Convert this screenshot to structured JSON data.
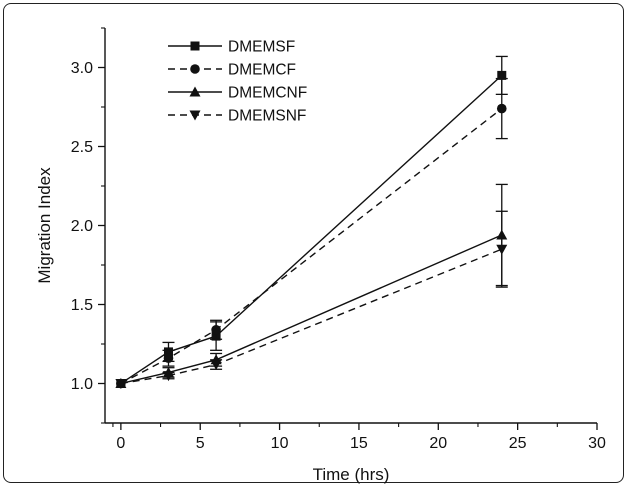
{
  "chart_data": {
    "type": "line",
    "title": "",
    "xlabel": "Time (hrs)",
    "ylabel": "Migration Index",
    "xlim": [
      -1,
      30
    ],
    "ylim": [
      0.75,
      3.25
    ],
    "x_ticks": [
      0,
      5,
      10,
      15,
      20,
      25,
      30
    ],
    "y_ticks": [
      1.0,
      1.5,
      2.0,
      2.5,
      3.0
    ],
    "x_tick_labels": [
      "0",
      "5",
      "10",
      "15",
      "20",
      "25",
      "30"
    ],
    "y_tick_labels": [
      "1.0",
      "1.5",
      "2.0",
      "2.5",
      "3.0"
    ],
    "grid": false,
    "legend_position": "top-left",
    "x": [
      0,
      3,
      6,
      24
    ],
    "series": [
      {
        "name": "DMEMSF",
        "marker": "square",
        "dash": "solid",
        "values": [
          1.0,
          1.2,
          1.3,
          2.95
        ],
        "errors": [
          0.0,
          0.06,
          0.09,
          0.12
        ]
      },
      {
        "name": "DMEMCF",
        "marker": "circle",
        "dash": "dashed",
        "values": [
          1.0,
          1.16,
          1.34,
          2.74
        ],
        "errors": [
          0.0,
          0.05,
          0.06,
          0.19
        ]
      },
      {
        "name": "DMEMCNF",
        "marker": "triangle-up",
        "dash": "solid",
        "values": [
          1.0,
          1.07,
          1.15,
          1.94
        ],
        "errors": [
          0.0,
          0.03,
          0.04,
          0.32
        ]
      },
      {
        "name": "DMEMSNF",
        "marker": "triangle-down",
        "dash": "dashed",
        "values": [
          1.0,
          1.05,
          1.12,
          1.85
        ],
        "errors": [
          0.0,
          0.02,
          0.03,
          0.24
        ]
      }
    ]
  }
}
